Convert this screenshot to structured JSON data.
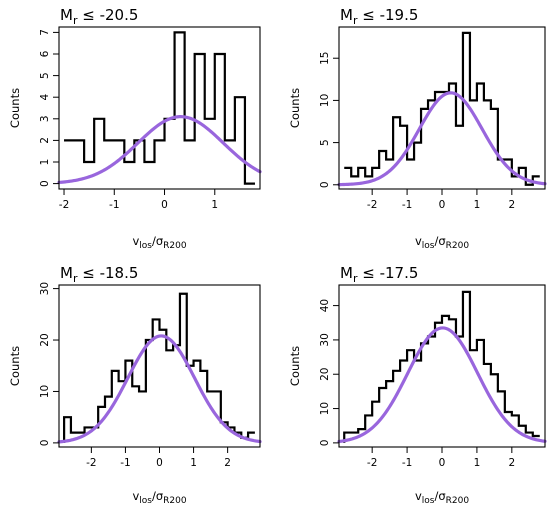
{
  "chart_data": [
    {
      "type": "histogram",
      "title": {
        "main": "M",
        "sub": "r",
        "rest": " ≤ -20.5"
      },
      "xlabel": {
        "main": "v",
        "sub1": "los",
        "slash": "/",
        "sigma": "σ",
        "sub2": "R200"
      },
      "ylabel": "Counts",
      "xlim": [
        -2.1,
        1.9
      ],
      "ylim": [
        -0.25,
        7.25
      ],
      "xticks": [
        -2,
        -1,
        0,
        1
      ],
      "xtick_labels": [
        "-2",
        "-1",
        "0",
        "1"
      ],
      "yticks": [
        0,
        1,
        2,
        3,
        4,
        5,
        6,
        7
      ],
      "ytick_labels": [
        "0",
        "1",
        "2",
        "3",
        "4",
        "5",
        "6",
        "7"
      ],
      "bins": {
        "edges": [
          -2.0,
          -1.6,
          -1.4,
          -1.2,
          -0.8,
          -0.6,
          -0.4,
          -0.2,
          0.0,
          0.2,
          0.4,
          0.6,
          0.8,
          1.0,
          1.2,
          1.4,
          1.6,
          1.8
        ],
        "counts": [
          2,
          1,
          3,
          2,
          1,
          2,
          1,
          2,
          3,
          7,
          2,
          6,
          3,
          6,
          2,
          4,
          0
        ],
        "start_from_zero": false
      },
      "fit": {
        "type": "gaussian",
        "amplitude": 3.1,
        "mean": 0.32,
        "sigma": 0.85,
        "color": "#9966dd"
      }
    },
    {
      "type": "histogram",
      "title": {
        "main": "M",
        "sub": "r",
        "rest": " ≤ -19.5"
      },
      "xlabel": {
        "main": "v",
        "sub1": "los",
        "slash": "/",
        "sigma": "σ",
        "sub2": "R200"
      },
      "ylabel": "Counts",
      "xlim": [
        -2.95,
        2.95
      ],
      "ylim": [
        -0.5,
        18.7
      ],
      "xticks": [
        -2,
        -1,
        0,
        1,
        2
      ],
      "xtick_labels": [
        "-2",
        "-1",
        "0",
        "1",
        "2"
      ],
      "yticks": [
        0,
        5,
        10,
        15
      ],
      "ytick_labels": [
        "0",
        "5",
        "10",
        "15"
      ],
      "bins": {
        "edges": [
          -2.8,
          -2.6,
          -2.4,
          -2.2,
          -2.0,
          -1.8,
          -1.6,
          -1.4,
          -1.2,
          -1.0,
          -0.8,
          -0.6,
          -0.4,
          -0.2,
          0.0,
          0.2,
          0.4,
          0.6,
          0.8,
          1.0,
          1.2,
          1.4,
          1.6,
          1.8,
          2.0,
          2.2,
          2.4,
          2.6,
          2.8
        ],
        "counts": [
          2,
          1,
          2,
          1,
          2,
          4,
          3,
          8,
          7,
          3,
          5,
          9,
          10,
          11,
          11,
          12,
          7,
          18,
          10,
          12,
          10,
          9,
          3,
          3,
          1,
          2,
          0,
          1
        ],
        "start_from_zero": false
      },
      "fit": {
        "type": "gaussian",
        "amplitude": 10.9,
        "mean": 0.25,
        "sigma": 0.9,
        "color": "#9966dd"
      }
    },
    {
      "type": "histogram",
      "title": {
        "main": "M",
        "sub": "r",
        "rest": " ≤ -18.5"
      },
      "xlabel": {
        "main": "v",
        "sub1": "los",
        "slash": "/",
        "sigma": "σ",
        "sub2": "R200"
      },
      "ylabel": "Counts",
      "xlim": [
        -2.95,
        2.95
      ],
      "ylim": [
        -0.8,
        30.7
      ],
      "xticks": [
        -2,
        -1,
        0,
        1,
        2
      ],
      "xtick_labels": [
        "-2",
        "-1",
        "0",
        "1",
        "2"
      ],
      "yticks": [
        0,
        10,
        20,
        30
      ],
      "ytick_labels": [
        "0",
        "10",
        "20",
        "30"
      ],
      "bins": {
        "edges": [
          -2.8,
          -2.6,
          -2.4,
          -2.2,
          -2.0,
          -1.8,
          -1.6,
          -1.4,
          -1.2,
          -1.0,
          -0.8,
          -0.6,
          -0.4,
          -0.2,
          0.0,
          0.2,
          0.4,
          0.6,
          0.8,
          1.0,
          1.2,
          1.4,
          1.6,
          1.8,
          2.0,
          2.2,
          2.4,
          2.6,
          2.8
        ],
        "counts": [
          5,
          2,
          2,
          3,
          3,
          7,
          9,
          14,
          12,
          16,
          11,
          10,
          20,
          24,
          22,
          18,
          19,
          29,
          15,
          16,
          14,
          10,
          10,
          4,
          3,
          2,
          1,
          2
        ],
        "start_from_zero": true
      },
      "fit": {
        "type": "gaussian",
        "amplitude": 20.8,
        "mean": 0.05,
        "sigma": 0.98,
        "color": "#9966dd"
      }
    },
    {
      "type": "histogram",
      "title": {
        "main": "M",
        "sub": "r",
        "rest": " ≤ -17.5"
      },
      "xlabel": {
        "main": "v",
        "sub1": "los",
        "slash": "/",
        "sigma": "σ",
        "sub2": "R200"
      },
      "ylabel": "Counts",
      "xlim": [
        -2.95,
        2.95
      ],
      "ylim": [
        -1.2,
        46.0
      ],
      "xticks": [
        -2,
        -1,
        0,
        1,
        2
      ],
      "xtick_labels": [
        "-2",
        "-1",
        "0",
        "1",
        "2"
      ],
      "yticks": [
        0,
        10,
        20,
        30,
        40
      ],
      "ytick_labels": [
        "0",
        "10",
        "20",
        "30",
        "40"
      ],
      "bins": {
        "edges": [
          -2.8,
          -2.6,
          -2.4,
          -2.2,
          -2.0,
          -1.8,
          -1.6,
          -1.4,
          -1.2,
          -1.0,
          -0.8,
          -0.6,
          -0.4,
          -0.2,
          0.0,
          0.2,
          0.4,
          0.6,
          0.8,
          1.0,
          1.2,
          1.4,
          1.6,
          1.8,
          2.0,
          2.2,
          2.4,
          2.6,
          2.8
        ],
        "counts": [
          3,
          3,
          4,
          8,
          12,
          16,
          18,
          21,
          24,
          27,
          24,
          29,
          31,
          35,
          37,
          36,
          31,
          44,
          27,
          30,
          23,
          20,
          15,
          9,
          8,
          5,
          3,
          2
        ],
        "start_from_zero": true
      },
      "fit": {
        "type": "gaussian",
        "amplitude": 33.5,
        "mean": 0.02,
        "sigma": 1.0,
        "color": "#9966dd"
      }
    }
  ]
}
